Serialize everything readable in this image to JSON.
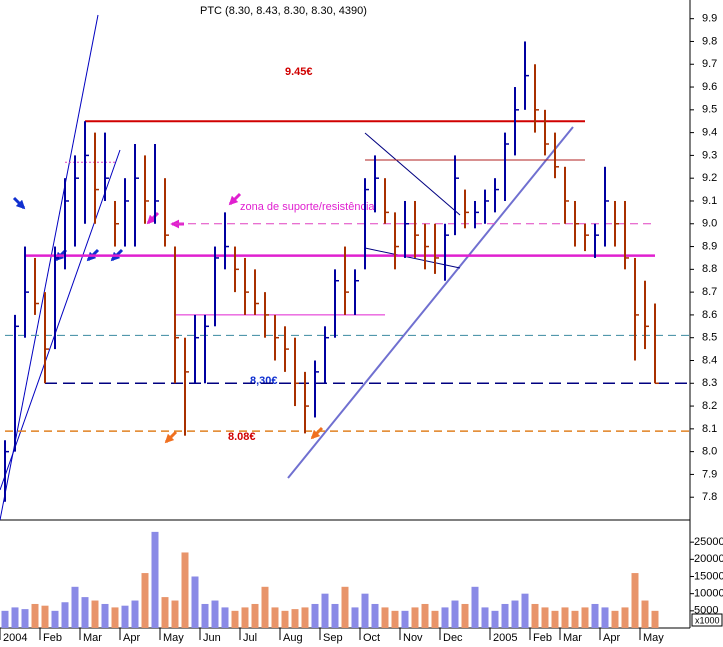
{
  "chart_data": [
    {
      "type": "ohlc",
      "title": "PTC (8.30, 8.43, 8.30, 8.30, 4390)",
      "high": [
        8.05,
        8.6,
        8.9,
        8.85,
        8.7,
        8.9,
        9.2,
        9.3,
        9.45,
        9.4,
        9.4,
        9.1,
        9.2,
        9.35,
        9.3,
        9.35,
        9.2,
        8.9,
        8.5,
        8.6,
        8.6,
        8.9,
        9.05,
        8.9,
        8.85,
        8.8,
        8.7,
        8.6,
        8.55,
        8.5,
        8.35,
        8.4,
        8.55,
        8.8,
        8.9,
        8.8,
        9.2,
        9.3,
        9.2,
        9.05,
        9.1,
        9.1,
        9.0,
        9.0,
        9.0,
        9.3,
        9.15,
        9.1,
        9.15,
        9.2,
        9.4,
        9.6,
        9.8,
        9.7,
        9.5,
        9.4,
        9.25,
        9.1,
        9.0,
        9.0,
        9.25,
        9.1,
        9.1,
        8.85,
        8.75,
        8.65
      ],
      "low": [
        7.78,
        8.0,
        8.5,
        8.6,
        8.3,
        8.45,
        8.8,
        8.9,
        9.0,
        9.0,
        9.1,
        8.9,
        8.9,
        8.9,
        9.0,
        9.0,
        8.9,
        8.3,
        8.07,
        8.3,
        8.3,
        8.55,
        8.8,
        8.7,
        8.6,
        8.6,
        8.5,
        8.4,
        8.35,
        8.2,
        8.08,
        8.15,
        8.3,
        8.5,
        8.6,
        8.6,
        8.8,
        9.05,
        9.0,
        8.8,
        8.85,
        8.85,
        8.8,
        8.78,
        8.75,
        8.95,
        8.98,
        8.98,
        9.0,
        9.05,
        9.1,
        9.3,
        9.5,
        9.4,
        9.3,
        9.2,
        9.0,
        8.9,
        8.88,
        8.85,
        8.9,
        8.9,
        8.8,
        8.4,
        8.45,
        8.3
      ],
      "close": [
        8.0,
        8.55,
        8.7,
        8.65,
        8.45,
        8.85,
        9.1,
        9.2,
        9.3,
        9.15,
        9.2,
        9.0,
        9.1,
        9.2,
        9.1,
        9.1,
        8.95,
        8.5,
        8.35,
        8.5,
        8.55,
        8.85,
        8.9,
        8.8,
        8.7,
        8.65,
        8.6,
        8.5,
        8.45,
        8.3,
        8.2,
        8.35,
        8.5,
        8.75,
        8.7,
        8.75,
        9.15,
        9.2,
        9.05,
        8.9,
        9.0,
        8.95,
        8.9,
        8.85,
        8.95,
        9.2,
        9.05,
        9.05,
        9.1,
        9.15,
        9.35,
        9.5,
        9.65,
        9.5,
        9.35,
        9.25,
        9.1,
        9.0,
        8.95,
        8.95,
        9.1,
        9.0,
        8.85,
        8.6,
        8.55,
        8.3
      ],
      "up_color": "#0000a0",
      "down_color": "#a83000",
      "ylim": [
        7.7,
        9.96
      ],
      "yticks": [
        7.8,
        7.9,
        {
          "value": 8,
          "label": "8.0"
        },
        8.1,
        8.2,
        8.3,
        8.4,
        8.5,
        8.6,
        8.7,
        8.8,
        8.9,
        {
          "value": 9,
          "label": "9.0"
        },
        9.1,
        9.2,
        9.3,
        9.4,
        9.5,
        9.6,
        9.7,
        9.8,
        9.9
      ],
      "levels": [
        {
          "value": 9.45,
          "color": "#d00000",
          "dash": "none",
          "width": 2,
          "start": 8,
          "end": 58
        },
        {
          "value": 9.28,
          "color": "#b02020",
          "dash": "none",
          "width": 1,
          "start": 36,
          "end": 58
        },
        {
          "value": 9.27,
          "color": "#e040c0",
          "dash": "2 2",
          "width": 1,
          "start": 6,
          "end": 11
        },
        {
          "value": 9.0,
          "color": "#e040c0",
          "dash": "8 5",
          "width": 1,
          "start": 17,
          "end": 65
        },
        {
          "value": 8.86,
          "color": "#e020d0",
          "dash": "none",
          "width": 2.5,
          "start": 2,
          "end": 65
        },
        {
          "value": 8.6,
          "color": "#e020d0",
          "dash": "none",
          "width": 1,
          "start": 17,
          "end": 38
        },
        {
          "value": 8.51,
          "color": "#3a8aa0",
          "dash": "8 5",
          "width": 1,
          "start": 0,
          "end": 68.5
        },
        {
          "value": 8.3,
          "color": "#000080",
          "dash": "12 6",
          "width": 1.5,
          "start": 4,
          "end": 68.5
        },
        {
          "value": 8.09,
          "color": "#e08020",
          "dash": "8 5",
          "width": 1.5,
          "start": 0,
          "end": 68.5
        }
      ],
      "annotations": [
        "9.45€",
        "8,30€",
        "8.08€",
        "zona de suporte/resistência"
      ]
    },
    {
      "type": "bar",
      "unit": "x1000",
      "categories": [
        "2004",
        null,
        null,
        null,
        "Feb",
        null,
        null,
        null,
        "Mar",
        null,
        null,
        null,
        "Apr",
        null,
        null,
        null,
        "May",
        null,
        null,
        null,
        "Jun",
        null,
        null,
        null,
        "Jul",
        null,
        null,
        null,
        "Aug",
        null,
        null,
        null,
        "Sep",
        null,
        null,
        null,
        "Oct",
        null,
        null,
        null,
        "Nov",
        null,
        null,
        null,
        "Dec",
        null,
        null,
        null,
        null,
        "2005",
        null,
        null,
        null,
        "Feb",
        null,
        null,
        "Mar",
        null,
        null,
        null,
        "Apr",
        null,
        null,
        null,
        "May",
        null
      ],
      "values": [
        5000,
        6000,
        5500,
        7000,
        6500,
        5000,
        7500,
        12000,
        9000,
        8000,
        7000,
        6000,
        6500,
        8000,
        16000,
        28000,
        9000,
        8000,
        22000,
        15000,
        7000,
        8000,
        6000,
        5000,
        6000,
        7000,
        12000,
        6000,
        5000,
        5500,
        6000,
        7000,
        10000,
        7000,
        12000,
        6000,
        10000,
        7000,
        6000,
        5000,
        5000,
        6000,
        7000,
        5000,
        6000,
        8000,
        7000,
        12000,
        6000,
        5000,
        7000,
        8000,
        10000,
        7000,
        6000,
        5000,
        6000,
        5000,
        6000,
        7000,
        6000,
        5000,
        6000,
        16000,
        8000,
        5000
      ],
      "up_color": "#8a8ae6",
      "down_color": "#e8946a",
      "ylim": [
        0,
        30000
      ],
      "yticks": [
        5000,
        10000,
        15000,
        20000,
        25000
      ]
    }
  ]
}
